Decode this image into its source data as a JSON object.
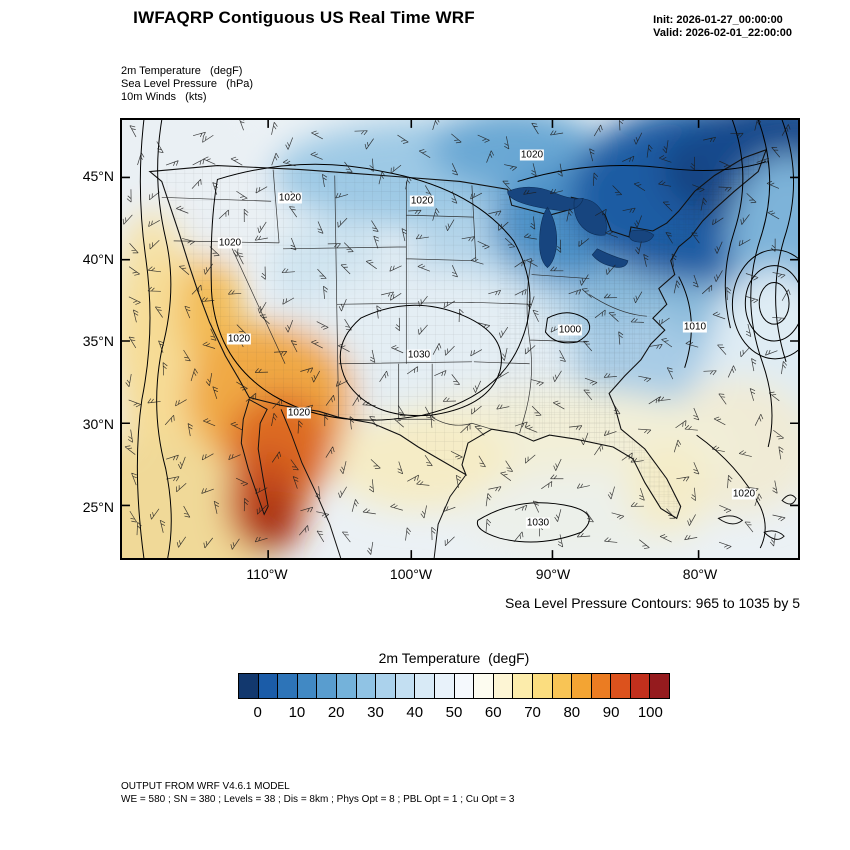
{
  "header": {
    "title": "IWFAQRP Contiguous US Real Time WRF",
    "init": "Init: 2026-01-27_00:00:00",
    "valid": "Valid: 2026-02-01_22:00:00"
  },
  "fields": {
    "temperature": "2m Temperature   (degF)",
    "pressure": "Sea Level Pressure   (hPa)",
    "winds": "10m Winds   (kts)"
  },
  "map": {
    "lat_labels": [
      "45°N",
      "40°N",
      "35°N",
      "30°N",
      "25°N"
    ],
    "lon_labels": [
      "110°W",
      "100°W",
      "90°W",
      "80°W"
    ],
    "contour_labels": [
      "1020",
      "1020",
      "1020",
      "1020",
      "1020",
      "1020",
      "1030",
      "1030",
      "1000",
      "1010",
      "1020"
    ]
  },
  "annotations": {
    "slp_note": "Sea Level Pressure Contours: 965 to 1035 by 5"
  },
  "colorbar": {
    "title": "2m Temperature  (degF)",
    "tick_labels": [
      "0",
      "10",
      "20",
      "30",
      "40",
      "50",
      "60",
      "70",
      "80",
      "90",
      "100"
    ],
    "colors": [
      "#12386e",
      "#1b5ca8",
      "#2d74b8",
      "#4189c4",
      "#599dcf",
      "#74b2da",
      "#90c3e4",
      "#abd2ec",
      "#c3dff2",
      "#d8eaf6",
      "#e8f2fa",
      "#f5f9fd",
      "#fdfcf0",
      "#fdf5d4",
      "#fcecab",
      "#fbdd7f",
      "#f8c455",
      "#f3a433",
      "#eb7c22",
      "#dc521d",
      "#c1301d",
      "#951b1e"
    ]
  },
  "footer": {
    "line1": "OUTPUT FROM WRF V4.6.1 MODEL",
    "line2": "WE = 580 ; SN = 380 ; Levels = 38 ; Dis = 8km ; Phys Opt = 8 ; PBL Opt = 1 ; Cu Opt = 3"
  },
  "chart_data": {
    "type": "heatmap",
    "title": "IWFAQRP Contiguous US Real Time WRF",
    "init_time": "2026-01-27_00:00:00",
    "valid_time": "2026-02-01_22:00:00",
    "variables": [
      "2m Temperature (degF)",
      "Sea Level Pressure (hPa)",
      "10m Winds (kts)"
    ],
    "x_ticks": [
      "110°W",
      "100°W",
      "90°W",
      "80°W"
    ],
    "y_ticks": [
      "45°N",
      "40°N",
      "35°N",
      "30°N",
      "25°N"
    ],
    "colorbar": {
      "title": "2m Temperature (degF)",
      "range": [
        0,
        100
      ],
      "tick_step": 10,
      "cell_step": 5,
      "n_cells": 22
    },
    "slp_contours": {
      "min": 965,
      "max": 1035,
      "step": 5,
      "labels_visible": [
        "1000",
        "1010",
        "1020",
        "1030"
      ]
    },
    "field_summary": [
      {
        "region": "Northeast / Great Lakes / New England",
        "temp_degF": "0-25",
        "shade": "dark blue"
      },
      {
        "region": "Northern plains / Upper Midwest",
        "temp_degF": "25-40",
        "shade": "light blue"
      },
      {
        "region": "Central and southern plains",
        "temp_degF": "40-55",
        "shade": "pale blue to white"
      },
      {
        "region": "Gulf Coast / Southeast / Florida",
        "temp_degF": "55-65",
        "shade": "cream"
      },
      {
        "region": "Southwest / Baja California / Sonora",
        "temp_degF": "70-90",
        "shade": "orange to red"
      },
      {
        "region": "High pressure 1030 over southern plains, 1020 ridge in west, tight low-pressure gradient off Northeast coast",
        "temp_degF": "",
        "shade": ""
      }
    ]
  }
}
